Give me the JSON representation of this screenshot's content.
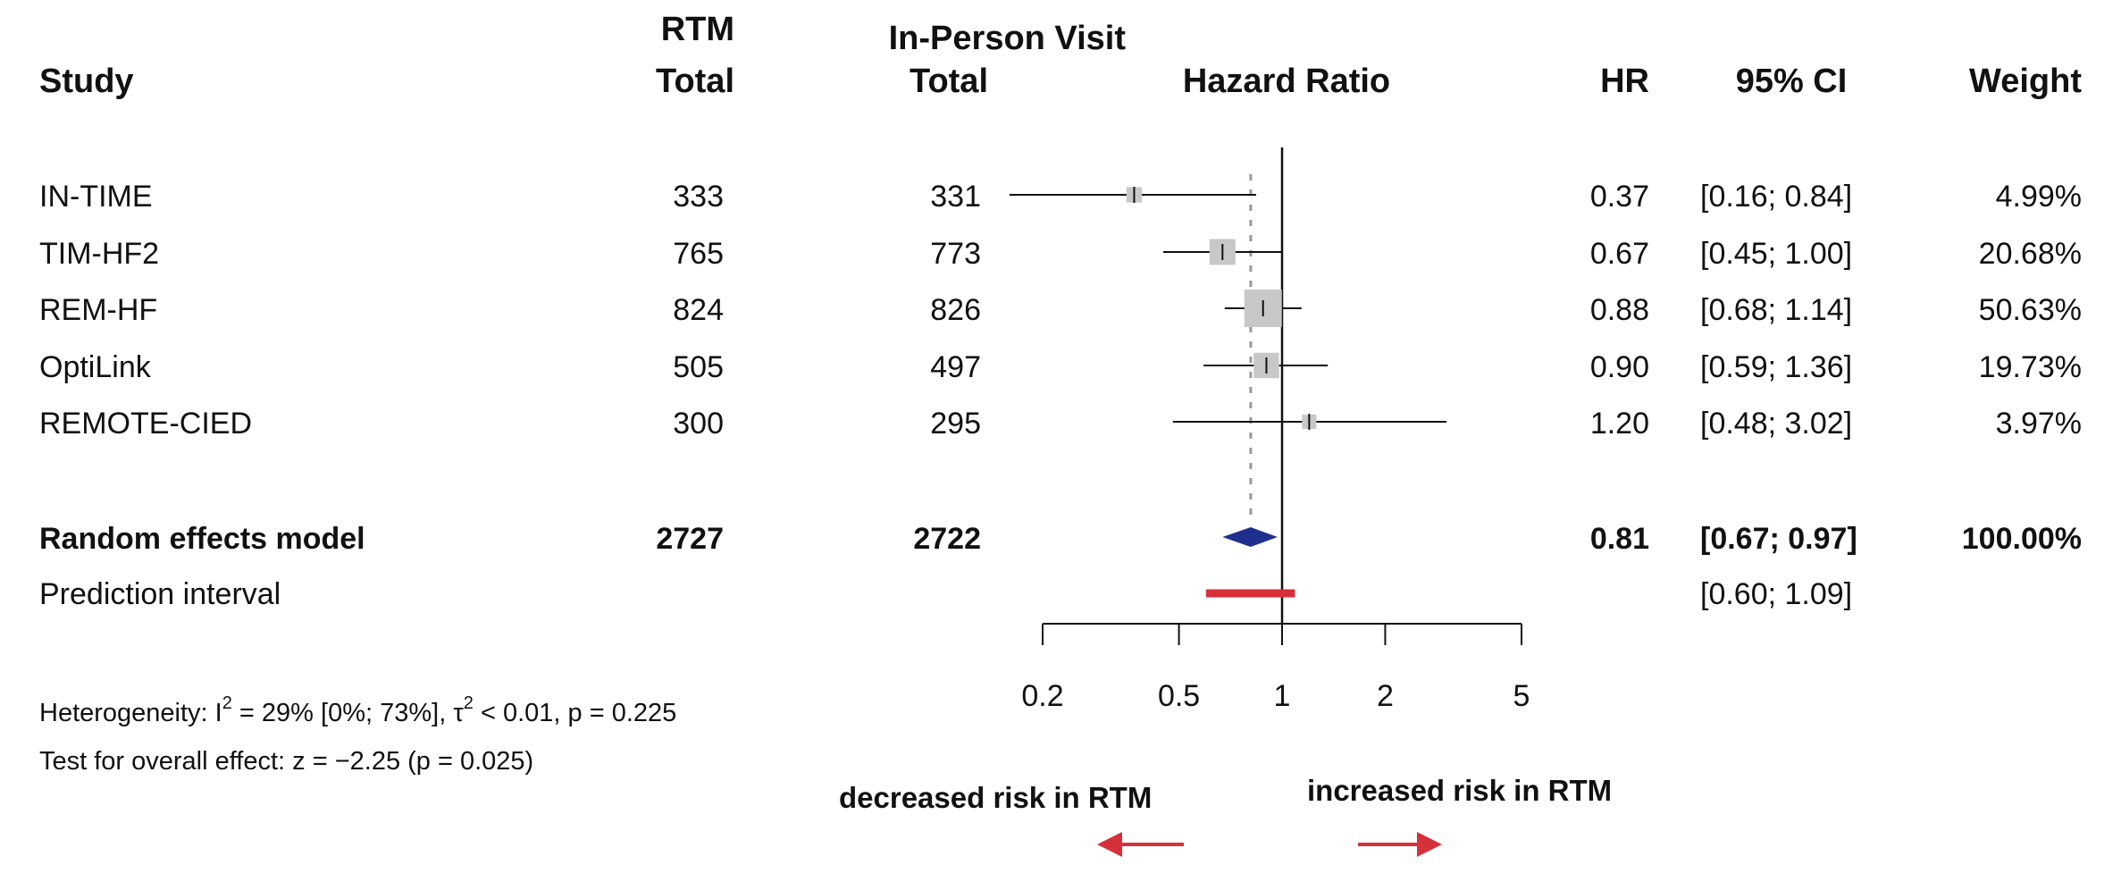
{
  "header": {
    "study": "Study",
    "rtm_top": "RTM",
    "rtm_bottom": "Total",
    "ipv_top": "In-Person Visit",
    "ipv_bottom": "Total",
    "hazard_ratio": "Hazard Ratio",
    "hr": "HR",
    "ci": "95% CI",
    "weight": "Weight"
  },
  "studies": [
    {
      "name": "IN-TIME",
      "rtm_total": "333",
      "ipv_total": "331",
      "hr_text": "0.37",
      "ci_text": "[0.16; 0.84]",
      "weight_text": "4.99%"
    },
    {
      "name": "TIM-HF2",
      "rtm_total": "765",
      "ipv_total": "773",
      "hr_text": "0.67",
      "ci_text": "[0.45; 1.00]",
      "weight_text": "20.68%"
    },
    {
      "name": "REM-HF",
      "rtm_total": "824",
      "ipv_total": "826",
      "hr_text": "0.88",
      "ci_text": "[0.68; 1.14]",
      "weight_text": "50.63%"
    },
    {
      "name": "OptiLink",
      "rtm_total": "505",
      "ipv_total": "497",
      "hr_text": "0.90",
      "ci_text": "[0.59; 1.36]",
      "weight_text": "19.73%"
    },
    {
      "name": "REMOTE-CIED",
      "rtm_total": "300",
      "ipv_total": "295",
      "hr_text": "1.20",
      "ci_text": "[0.48; 3.02]",
      "weight_text": "3.97%"
    }
  ],
  "random_effects": {
    "label": "Random effects model",
    "rtm_total": "2727",
    "ipv_total": "2722",
    "hr_text": "0.81",
    "ci_text": "[0.67; 0.97]",
    "weight_text": "100.00%"
  },
  "prediction_interval": {
    "label": "Prediction interval",
    "ci_text": "[0.60; 1.09]"
  },
  "footnotes": {
    "heterogeneity_prefix": "Heterogeneity: I",
    "heterogeneity_i2": "= 29% [0%; 73%], τ",
    "heterogeneity_tau2": "< 0.01, p = 0.225",
    "sup_2": "2",
    "overall_effect": "Test for overall effect: z = −2.25 (p = 0.025)"
  },
  "directions": {
    "left_label": "decreased risk in RTM",
    "right_label": "increased risk in RTM"
  },
  "colors": {
    "ink": "#111111",
    "square": "#c8c8c8",
    "diamond": "#1f2f8f",
    "prediction": "#d6303a",
    "arrow": "#d6303a",
    "reference_dash": "#999999"
  },
  "chart_data": {
    "type": "forest",
    "scale": "log",
    "xlabel": "Hazard Ratio",
    "xlim": [
      0.2,
      5
    ],
    "ticks": [
      0.2,
      0.5,
      1,
      2,
      5
    ],
    "tick_labels": [
      "0.2",
      "0.5",
      "1",
      "2",
      "5"
    ],
    "reference_line": 1,
    "pooled_line": 0.81,
    "studies": [
      {
        "name": "IN-TIME",
        "hr": 0.37,
        "lower": 0.16,
        "upper": 0.84,
        "weight": 4.99
      },
      {
        "name": "TIM-HF2",
        "hr": 0.67,
        "lower": 0.45,
        "upper": 1.0,
        "weight": 20.68
      },
      {
        "name": "REM-HF",
        "hr": 0.88,
        "lower": 0.68,
        "upper": 1.14,
        "weight": 50.63
      },
      {
        "name": "OptiLink",
        "hr": 0.9,
        "lower": 0.59,
        "upper": 1.36,
        "weight": 19.73
      },
      {
        "name": "REMOTE-CIED",
        "hr": 1.2,
        "lower": 0.48,
        "upper": 3.02,
        "weight": 3.97
      }
    ],
    "pooled": {
      "hr": 0.81,
      "lower": 0.67,
      "upper": 0.97
    },
    "prediction": {
      "lower": 0.6,
      "upper": 1.09
    }
  }
}
